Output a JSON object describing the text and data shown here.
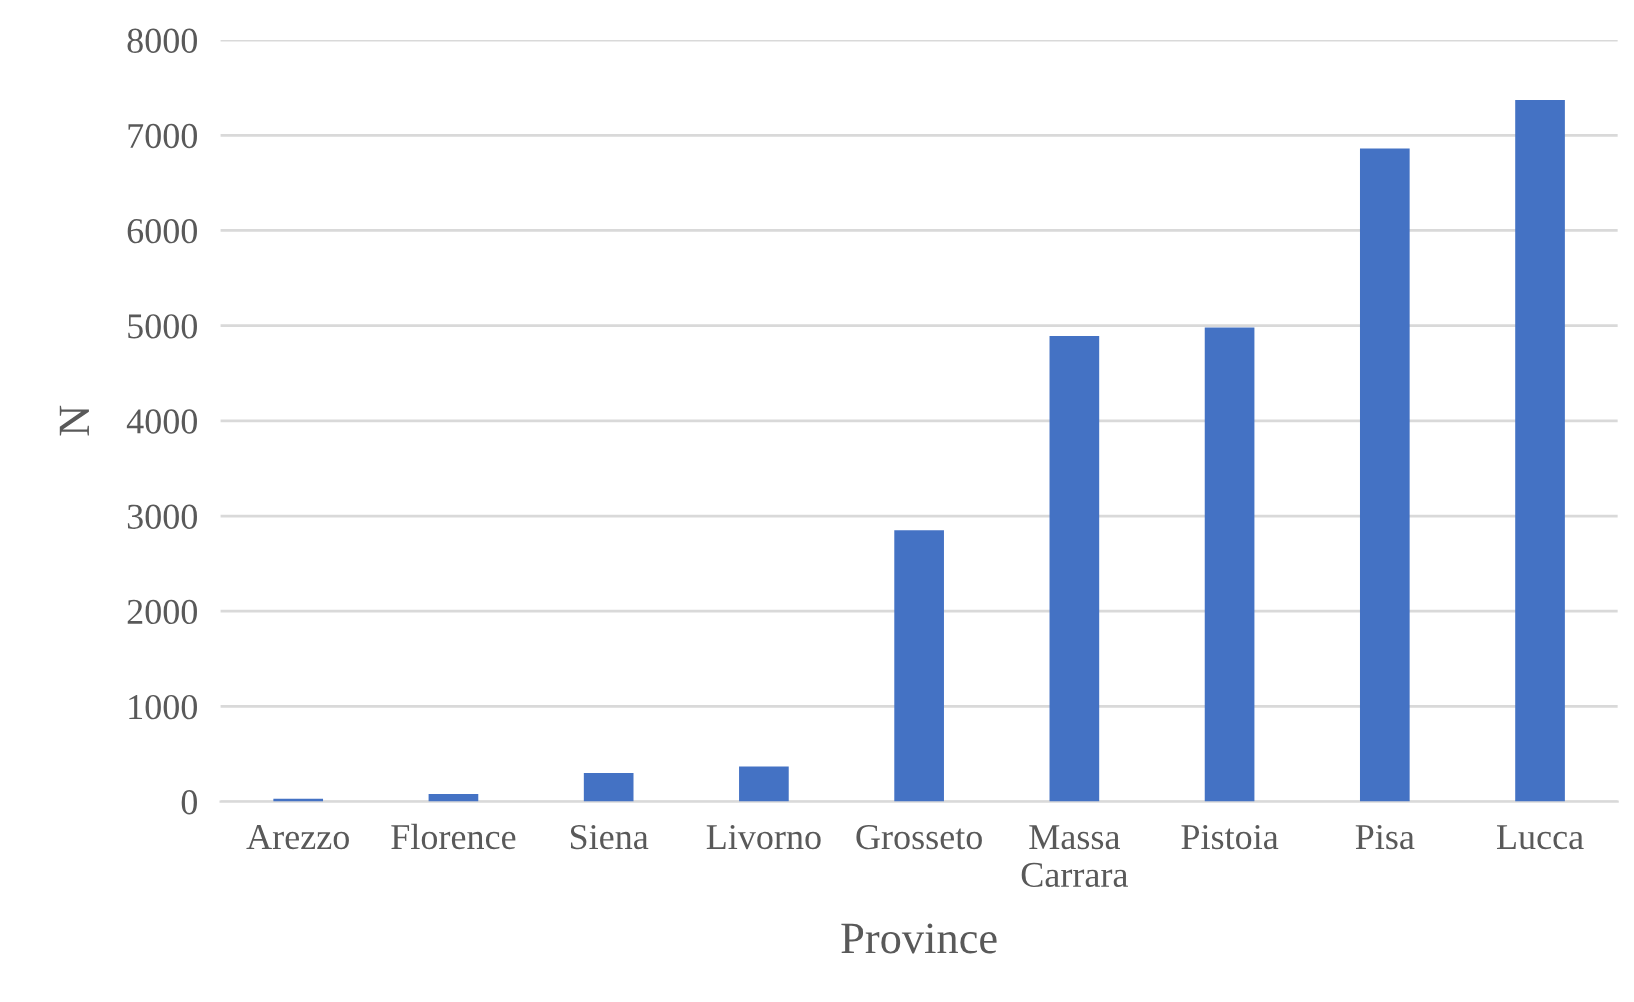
{
  "chart_data": {
    "type": "bar",
    "xlabel": "Province",
    "ylabel": "N",
    "categories": [
      "Arezzo",
      "Florence",
      "Siena",
      "Livorno",
      "Grosseto",
      "Massa\nCarrara",
      "Pistoia",
      "Pisa",
      "Lucca"
    ],
    "values": [
      30,
      80,
      300,
      370,
      2850,
      4890,
      4980,
      6860,
      7370
    ],
    "color": "#4472c4",
    "ylim": [
      0,
      8000
    ],
    "yticks": [
      0,
      1000,
      2000,
      3000,
      4000,
      5000,
      6000,
      7000,
      8000
    ],
    "grid": "y"
  }
}
